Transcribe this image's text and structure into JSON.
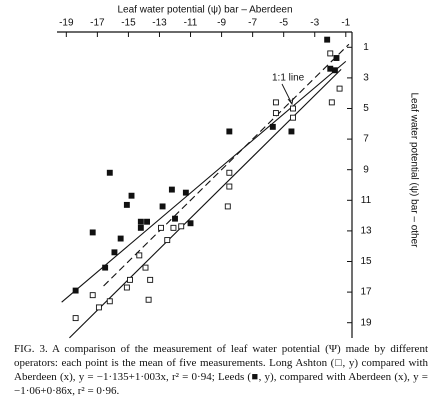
{
  "chart_data": {
    "type": "scatter",
    "x_label": "Leaf water potential (ψ) bar – Aberdeen",
    "y_label": "Leaf water potential (ψ) bar – other",
    "xlim": [
      -19.6,
      -0.6
    ],
    "ylim": [
      -20,
      0
    ],
    "xticks": [
      -19,
      -17,
      -15,
      -13,
      -11,
      -9,
      -7,
      -5,
      -3,
      -1
    ],
    "yticks": [
      {
        "value": -1,
        "label": "1"
      },
      {
        "value": -3,
        "label": "3"
      },
      {
        "value": -5,
        "label": "5"
      },
      {
        "value": -7,
        "label": "7"
      },
      {
        "value": -9,
        "label": "9"
      },
      {
        "value": -11,
        "label": "11"
      },
      {
        "value": -13,
        "label": "13"
      },
      {
        "value": -15,
        "label": "15"
      },
      {
        "value": -17,
        "label": "17"
      },
      {
        "value": -19,
        "label": "19"
      }
    ],
    "series": [
      {
        "color": "#111111",
        "filled": true,
        "x": [
          -18.4,
          -17.3,
          -16.5,
          -16.2,
          -15.9,
          -15.5,
          -15.1,
          -14.8,
          -14.2,
          -14.2,
          -13.8,
          -12.8,
          -12.2,
          -12.0,
          -11.3,
          -11.0,
          -8.5,
          -5.7,
          -4.5,
          -2.0,
          -1.7,
          -2.2,
          -1.6
        ],
        "values": [
          -16.9,
          -13.1,
          -15.4,
          -9.2,
          -14.4,
          -13.5,
          -11.3,
          -10.7,
          -12.4,
          -12.8,
          -12.4,
          -11.4,
          -10.3,
          -12.2,
          -10.5,
          -12.5,
          -6.5,
          -6.2,
          -6.5,
          -2.4,
          -2.5,
          -0.5,
          -1.7
        ]
      },
      {
        "color": "#111111",
        "filled": false,
        "x": [
          -18.4,
          -17.3,
          -16.9,
          -16.2,
          -15.1,
          -14.9,
          -14.3,
          -13.9,
          -13.7,
          -13.6,
          -12.9,
          -12.5,
          -12.1,
          -11.6,
          -8.6,
          -8.5,
          -8.5,
          -5.5,
          -5.5,
          -4.4,
          -4.4,
          -1.9,
          -2.0,
          -1.4
        ],
        "values": [
          -18.7,
          -17.2,
          -18.0,
          -17.6,
          -16.7,
          -16.2,
          -14.6,
          -15.4,
          -17.5,
          -16.2,
          -12.8,
          -13.6,
          -12.8,
          -12.7,
          -11.4,
          -9.2,
          -10.1,
          -4.6,
          -5.3,
          -5.0,
          -5.6,
          -4.6,
          -1.4,
          -3.7
        ]
      }
    ],
    "lines": [
      {
        "x": [
          -19.3,
          -1.0
        ],
        "values": [
          -17.66,
          -1.92
        ],
        "dashed": false
      },
      {
        "x": [
          -18.8,
          -1.3
        ],
        "values": [
          -19.99,
          -2.44
        ],
        "dashed": false
      },
      {
        "x": [
          -16.6,
          -0.8
        ],
        "values": [
          -16.6,
          -0.8
        ],
        "dashed": true
      }
    ],
    "annotation": "1:1 line",
    "caption": "FIG. 3. A comparison of the measurement of leaf water potential (Ψ) made by different operators: each point is the mean of five measurements. Long Ashton (□, y) compared with Aberdeen (x), y = −1·135+1·003x, r² = 0·94; Leeds (■, y), compared with Aberdeen (x), y = −1·06+0·86x, r² = 0·96."
  }
}
